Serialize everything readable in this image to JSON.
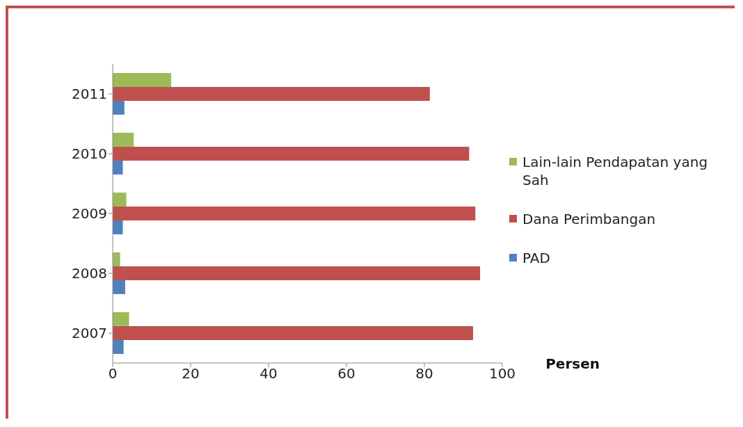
{
  "chart_data": {
    "type": "bar",
    "orientation": "horizontal",
    "categories": [
      "2011",
      "2010",
      "2009",
      "2008",
      "2007"
    ],
    "series": [
      {
        "name": "Lain-lain Pendapatan yang Sah",
        "color": "#9bbb59",
        "values": [
          15.0,
          5.4,
          3.5,
          1.9,
          4.2
        ]
      },
      {
        "name": "Dana Perimbangan",
        "color": "#c0504d",
        "values": [
          81.4,
          91.5,
          93.1,
          94.3,
          92.5
        ]
      },
      {
        "name": "PAD",
        "color": "#4f81bd",
        "values": [
          3.0,
          2.6,
          2.6,
          3.2,
          2.8
        ]
      }
    ],
    "xlabel": "Persen",
    "xlim": [
      0,
      100
    ],
    "xticks": [
      0,
      20,
      40,
      60,
      80,
      100
    ],
    "grid": false,
    "legend": "right"
  }
}
